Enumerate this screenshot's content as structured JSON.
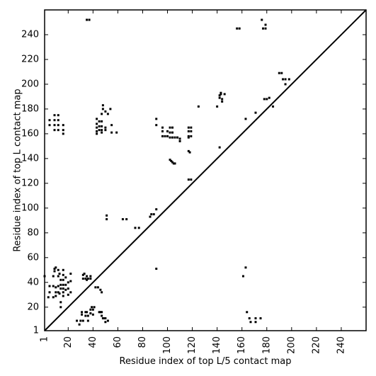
{
  "chart_data": {
    "type": "scatter",
    "subtype": "contact-map",
    "title": "",
    "xlabel": "Residue index of top L/5 contact map",
    "ylabel": "Residue index of top L contact map",
    "xlim": [
      1,
      260
    ],
    "ylim": [
      1,
      260
    ],
    "xticks": [
      1,
      20,
      40,
      60,
      80,
      100,
      120,
      140,
      160,
      180,
      200,
      220,
      240
    ],
    "yticks": [
      1,
      20,
      40,
      60,
      80,
      100,
      120,
      140,
      160,
      180,
      200,
      220,
      240
    ],
    "grid": false,
    "colors": {
      "contact": "#000000",
      "diagonal": "#000000",
      "background": "#ffffff"
    },
    "diagonal_line": {
      "from": [
        1,
        1
      ],
      "to": [
        260,
        260
      ]
    },
    "upper_contacts": [
      [
        5,
        171
      ],
      [
        5,
        167
      ],
      [
        9,
        175
      ],
      [
        9,
        171
      ],
      [
        9,
        167
      ],
      [
        9,
        163
      ],
      [
        12,
        175
      ],
      [
        12,
        171
      ],
      [
        12,
        167
      ],
      [
        12,
        163
      ],
      [
        16,
        167
      ],
      [
        16,
        163
      ],
      [
        16,
        160
      ],
      [
        35,
        252
      ],
      [
        37,
        252
      ],
      [
        43,
        172
      ],
      [
        43,
        168
      ],
      [
        43,
        165
      ],
      [
        43,
        162
      ],
      [
        43,
        160
      ],
      [
        45,
        170
      ],
      [
        45,
        166
      ],
      [
        45,
        163
      ],
      [
        47,
        176
      ],
      [
        47,
        170
      ],
      [
        47,
        166
      ],
      [
        47,
        163
      ],
      [
        47,
        161
      ],
      [
        48,
        183
      ],
      [
        48,
        180
      ],
      [
        50,
        178
      ],
      [
        50,
        165
      ],
      [
        50,
        163
      ],
      [
        52,
        176
      ],
      [
        54,
        180
      ],
      [
        55,
        167
      ],
      [
        55,
        161
      ],
      [
        59,
        161
      ],
      [
        51,
        94
      ],
      [
        51,
        91
      ],
      [
        64,
        91
      ],
      [
        67,
        91
      ],
      [
        74,
        84
      ],
      [
        77,
        84
      ],
      [
        86,
        93
      ],
      [
        87,
        95
      ],
      [
        89,
        95
      ],
      [
        91,
        99
      ],
      [
        91,
        172
      ],
      [
        91,
        167
      ],
      [
        96,
        165
      ],
      [
        96,
        162
      ],
      [
        96,
        158
      ],
      [
        98,
        158
      ],
      [
        100,
        162
      ],
      [
        100,
        158
      ],
      [
        102,
        165
      ],
      [
        102,
        161
      ],
      [
        102,
        157
      ],
      [
        104,
        165
      ],
      [
        104,
        161
      ],
      [
        104,
        157
      ],
      [
        106,
        157
      ],
      [
        108,
        157
      ],
      [
        110,
        156
      ],
      [
        110,
        154
      ],
      [
        102,
        139
      ],
      [
        103,
        138
      ],
      [
        104,
        137
      ],
      [
        105,
        136
      ],
      [
        106,
        136
      ],
      [
        117,
        123
      ],
      [
        119,
        123
      ],
      [
        117,
        146
      ],
      [
        118,
        145
      ],
      [
        117,
        165
      ],
      [
        117,
        162
      ],
      [
        117,
        158
      ],
      [
        117,
        157
      ],
      [
        119,
        165
      ],
      [
        119,
        162
      ],
      [
        119,
        158
      ],
      [
        125,
        182
      ],
      [
        140,
        182
      ],
      [
        142,
        189
      ],
      [
        142,
        191
      ],
      [
        143,
        192
      ],
      [
        143,
        193
      ],
      [
        144,
        186
      ],
      [
        144,
        188
      ],
      [
        146,
        192
      ],
      [
        142,
        149
      ],
      [
        156,
        245
      ],
      [
        158,
        245
      ],
      [
        163,
        172
      ],
      [
        171,
        177
      ],
      [
        176,
        252
      ],
      [
        177,
        245
      ],
      [
        179,
        248
      ],
      [
        179,
        245
      ],
      [
        178,
        188
      ],
      [
        180,
        188
      ],
      [
        182,
        189
      ],
      [
        185,
        182
      ],
      [
        190,
        209
      ],
      [
        192,
        209
      ],
      [
        193,
        204
      ],
      [
        195,
        200
      ],
      [
        195,
        204
      ],
      [
        198,
        204
      ]
    ],
    "lower_contacts": [
      [
        1,
        45
      ],
      [
        4,
        28
      ],
      [
        5,
        32
      ],
      [
        5,
        37
      ],
      [
        8,
        28
      ],
      [
        8,
        37
      ],
      [
        8,
        45
      ],
      [
        9,
        51
      ],
      [
        9,
        49
      ],
      [
        10,
        52
      ],
      [
        10,
        36
      ],
      [
        10,
        32
      ],
      [
        10,
        29
      ],
      [
        12,
        50
      ],
      [
        12,
        45
      ],
      [
        12,
        37
      ],
      [
        12,
        32
      ],
      [
        13,
        47
      ],
      [
        13,
        31
      ],
      [
        14,
        42
      ],
      [
        14,
        38
      ],
      [
        14,
        35
      ],
      [
        14,
        24
      ],
      [
        14,
        20
      ],
      [
        16,
        50
      ],
      [
        16,
        46
      ],
      [
        16,
        42
      ],
      [
        16,
        38
      ],
      [
        16,
        35
      ],
      [
        16,
        32
      ],
      [
        16,
        29
      ],
      [
        18,
        44
      ],
      [
        18,
        38
      ],
      [
        18,
        34
      ],
      [
        20,
        40
      ],
      [
        20,
        35
      ],
      [
        20,
        30
      ],
      [
        22,
        47
      ],
      [
        22,
        41
      ],
      [
        22,
        32
      ],
      [
        27,
        9
      ],
      [
        29,
        6
      ],
      [
        30,
        9
      ],
      [
        31,
        14
      ],
      [
        31,
        16
      ],
      [
        32,
        46
      ],
      [
        32,
        43
      ],
      [
        32,
        9
      ],
      [
        33,
        47
      ],
      [
        34,
        43
      ],
      [
        34,
        16
      ],
      [
        34,
        13
      ],
      [
        35,
        45
      ],
      [
        35,
        42
      ],
      [
        35,
        16
      ],
      [
        36,
        43
      ],
      [
        36,
        13
      ],
      [
        36,
        9
      ],
      [
        38,
        45
      ],
      [
        38,
        43
      ],
      [
        38,
        18
      ],
      [
        38,
        15
      ],
      [
        39,
        20
      ],
      [
        40,
        18
      ],
      [
        40,
        14
      ],
      [
        41,
        20
      ],
      [
        42,
        36
      ],
      [
        44,
        36
      ],
      [
        45,
        16
      ],
      [
        46,
        34
      ],
      [
        46,
        16
      ],
      [
        47,
        32
      ],
      [
        47,
        16
      ],
      [
        47,
        13
      ],
      [
        48,
        11
      ],
      [
        49,
        11
      ],
      [
        50,
        8
      ],
      [
        50,
        11
      ],
      [
        52,
        9
      ],
      [
        91,
        51
      ],
      [
        161,
        45
      ],
      [
        163,
        52
      ],
      [
        164,
        16
      ],
      [
        166,
        11
      ],
      [
        167,
        8
      ],
      [
        171,
        11
      ],
      [
        171,
        8
      ],
      [
        175,
        11
      ]
    ]
  }
}
